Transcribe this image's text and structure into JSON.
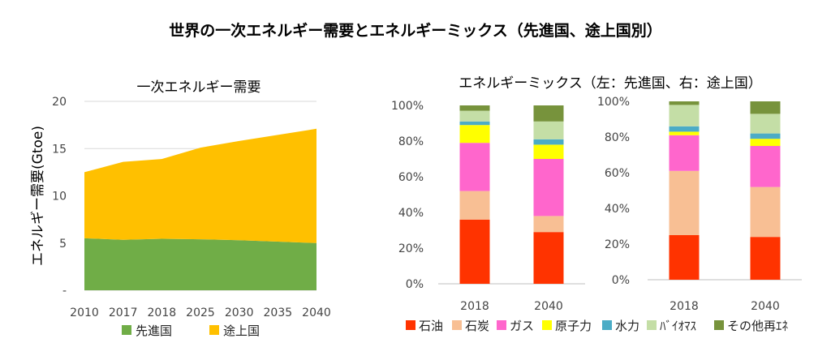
{
  "title": "世界の一次エネルギー需要とエネルギーミックス（先進国、途上国別）",
  "chart_data": [
    {
      "type": "area",
      "title": "一次エネルギー需要",
      "ylabel": "エネルギー需要(Gtoe)",
      "x": [
        "2010",
        "2017",
        "2018",
        "2025",
        "2030",
        "2035",
        "2040"
      ],
      "ylim": [
        0,
        20
      ],
      "yticks": [
        "-",
        "5",
        "10",
        "15",
        "20"
      ],
      "stacked": true,
      "grid": true,
      "legend": "bottom",
      "series": [
        {
          "name": "先進国",
          "color": "#70AD47",
          "values": [
            5.5,
            5.35,
            5.45,
            5.4,
            5.3,
            5.15,
            5.0
          ]
        },
        {
          "name": "途上国",
          "color": "#FFC000",
          "values": [
            7.0,
            8.25,
            8.45,
            9.7,
            10.5,
            11.3,
            12.1
          ]
        }
      ]
    },
    {
      "type": "bar",
      "title": "エネルギーミックス（左：先進国、右：途上国）",
      "stacked": true,
      "percent": true,
      "ylim": [
        0,
        100
      ],
      "yticks": [
        "0%",
        "20%",
        "40%",
        "60%",
        "80%",
        "100%"
      ],
      "legend": "bottom",
      "groups": [
        {
          "name": "先進国",
          "categories": [
            "2018",
            "2040"
          ],
          "series": [
            {
              "name": "石油",
              "color": "#FF3300",
              "values": [
                36,
                29
              ]
            },
            {
              "name": "石炭",
              "color": "#F8BF94",
              "values": [
                16,
                9
              ]
            },
            {
              "name": "ガス",
              "color": "#FF66CC",
              "values": [
                27,
                32
              ]
            },
            {
              "name": "原子力",
              "color": "#FFFF00",
              "values": [
                10,
                8
              ]
            },
            {
              "name": "水力",
              "color": "#4BACC6",
              "values": [
                2,
                3
              ]
            },
            {
              "name": "ﾊﾞｲｵﾏｽ",
              "color": "#C4DEA6",
              "values": [
                6,
                10
              ]
            },
            {
              "name": "その他再ｴﾈ",
              "color": "#77933C",
              "values": [
                3,
                9
              ]
            }
          ]
        },
        {
          "name": "途上国",
          "categories": [
            "2018",
            "2040"
          ],
          "series": [
            {
              "name": "石油",
              "color": "#FF3300",
              "values": [
                25,
                24
              ]
            },
            {
              "name": "石炭",
              "color": "#F8BF94",
              "values": [
                36,
                28
              ]
            },
            {
              "name": "ガス",
              "color": "#FF66CC",
              "values": [
                20,
                23
              ]
            },
            {
              "name": "原子力",
              "color": "#FFFF00",
              "values": [
                2,
                4
              ]
            },
            {
              "name": "水力",
              "color": "#4BACC6",
              "values": [
                3,
                3
              ]
            },
            {
              "name": "ﾊﾞｲｵﾏｽ",
              "color": "#C4DEA6",
              "values": [
                12,
                11
              ]
            },
            {
              "name": "その他再ｴﾈ",
              "color": "#77933C",
              "values": [
                2,
                7
              ]
            }
          ]
        }
      ]
    }
  ]
}
